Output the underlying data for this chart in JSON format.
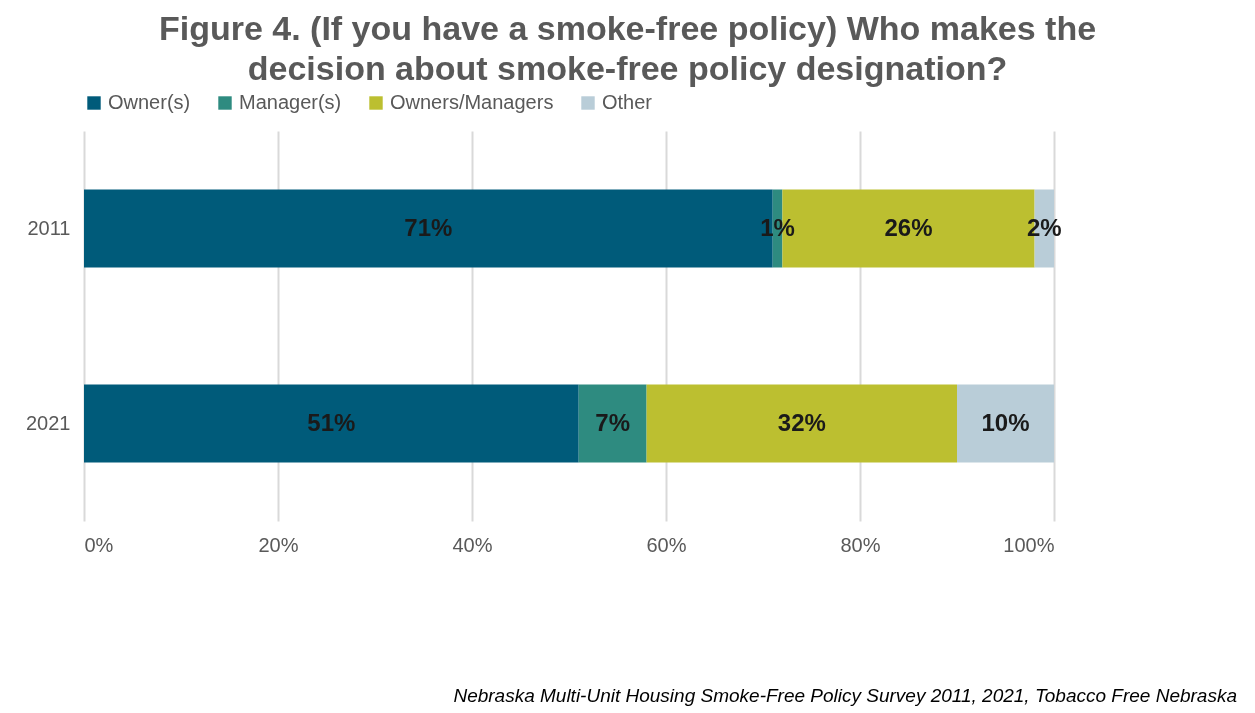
{
  "chart_data": {
    "type": "bar",
    "orientation": "horizontal",
    "stacked": true,
    "title": "Figure 4. (If you have a smoke-free policy) Who makes the decision about smoke-free policy designation?",
    "categories": [
      "2011",
      "2021"
    ],
    "series": [
      {
        "name": "Owner(s)",
        "color": "#005b7a",
        "values": [
          71,
          51
        ],
        "value_labels": [
          "71%",
          "51%"
        ]
      },
      {
        "name": "Manager(s)",
        "color": "#2e8b80",
        "values": [
          1,
          7
        ],
        "value_labels": [
          "1%",
          "7%"
        ]
      },
      {
        "name": "Owners/Managers",
        "color": "#bcbf30",
        "values": [
          26,
          32
        ],
        "value_labels": [
          "26%",
          "32%"
        ]
      },
      {
        "name": "Other",
        "color": "#b9cdd8",
        "values": [
          2,
          10
        ],
        "value_labels": [
          "2%",
          "10%"
        ]
      }
    ],
    "xlim": [
      0,
      100
    ],
    "xticks": [
      {
        "value": 0,
        "label": "0%"
      },
      {
        "value": 20,
        "label": "20%"
      },
      {
        "value": 40,
        "label": "40%"
      },
      {
        "value": 60,
        "label": "60%"
      },
      {
        "value": 80,
        "label": "80%"
      },
      {
        "value": 100,
        "label": "100%"
      }
    ],
    "grid": "x",
    "legend": "top",
    "annotations": [
      "Nebraska Multi-Unit Housing Smoke-Free Policy Survey 2011, 2021, Tobacco Free Nebraska"
    ]
  }
}
